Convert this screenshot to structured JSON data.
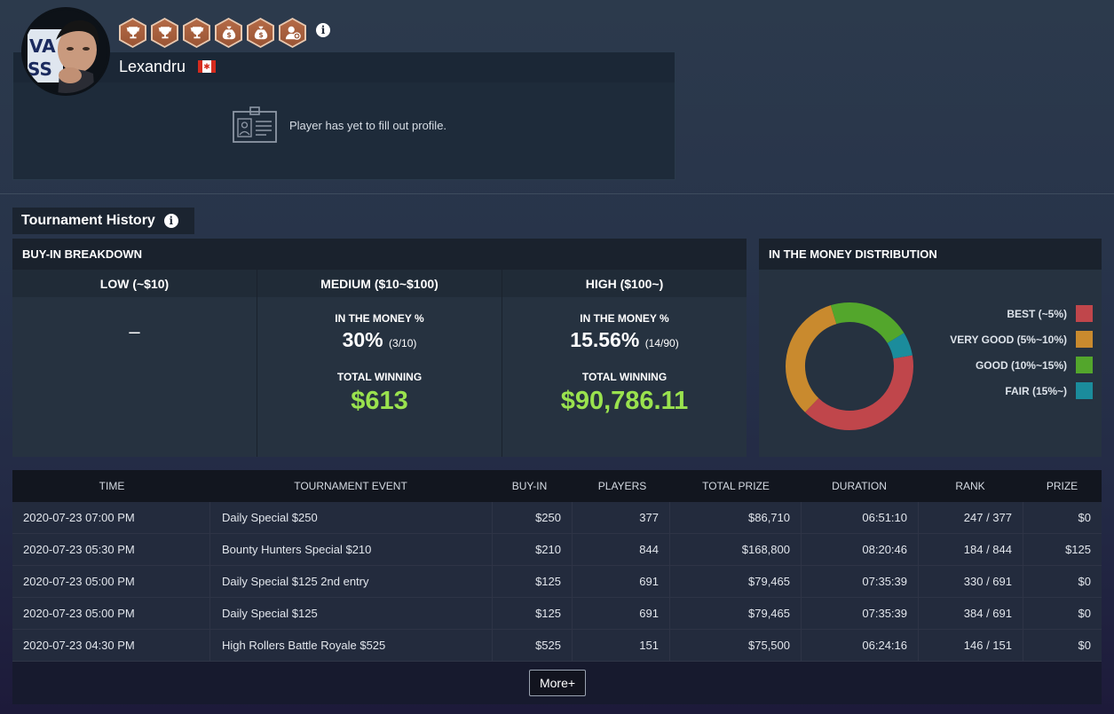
{
  "profile": {
    "name": "Lexandru",
    "country_flag": "canada-flag",
    "empty_message": "Player has yet to fill out profile.",
    "badges": [
      {
        "icon": "trophy-icon"
      },
      {
        "icon": "trophy-icon"
      },
      {
        "icon": "trophy-icon"
      },
      {
        "icon": "money-bag-icon"
      },
      {
        "icon": "money-bag-icon"
      },
      {
        "icon": "add-user-icon"
      }
    ]
  },
  "history": {
    "tab_label": "Tournament History"
  },
  "buyin": {
    "title": "BUY-IN BREAKDOWN",
    "itm_label": "IN THE MONEY %",
    "tw_label": "TOTAL WINNING",
    "low": {
      "label": "LOW (~$10)",
      "empty": "–"
    },
    "medium": {
      "label": "MEDIUM ($10~$100)",
      "itm": "30%",
      "itm_detail": "(3/10)",
      "total": "$613"
    },
    "high": {
      "label": "HIGH ($100~)",
      "itm": "15.56%",
      "itm_detail": "(14/90)",
      "total": "$90,786.11"
    }
  },
  "distribution": {
    "title": "IN THE MONEY DISTRIBUTION",
    "legend": [
      {
        "label": "BEST (~5%)",
        "color": "#c0464b"
      },
      {
        "label": "VERY GOOD (5%~10%)",
        "color": "#c98a2e"
      },
      {
        "label": "GOOD (10%~15%)",
        "color": "#53a62c"
      },
      {
        "label": "FAIR (15%~)",
        "color": "#1b8c9c"
      }
    ]
  },
  "chart_data": {
    "type": "pie",
    "categories": [
      "BEST (~5%)",
      "VERY GOOD (5%~10%)",
      "GOOD (10%~15%)",
      "FAIR (15%~)"
    ],
    "values": [
      40,
      33,
      21,
      6
    ]
  },
  "table": {
    "columns": [
      "TIME",
      "TOURNAMENT EVENT",
      "BUY-IN",
      "PLAYERS",
      "TOTAL PRIZE",
      "DURATION",
      "RANK",
      "PRIZE"
    ],
    "rows": [
      {
        "time": "2020-07-23 07:00 PM",
        "event": "Daily Special $250",
        "buyin": "$250",
        "players": "377",
        "total_prize": "$86,710",
        "duration": "06:51:10",
        "rank": "247 / 377",
        "prize": "$0"
      },
      {
        "time": "2020-07-23 05:30 PM",
        "event": "Bounty Hunters Special $210",
        "buyin": "$210",
        "players": "844",
        "total_prize": "$168,800",
        "duration": "08:20:46",
        "rank": "184 / 844",
        "prize": "$125"
      },
      {
        "time": "2020-07-23 05:00 PM",
        "event": "Daily Special $125 2nd entry",
        "buyin": "$125",
        "players": "691",
        "total_prize": "$79,465",
        "duration": "07:35:39",
        "rank": "330 / 691",
        "prize": "$0"
      },
      {
        "time": "2020-07-23 05:00 PM",
        "event": "Daily Special $125",
        "buyin": "$125",
        "players": "691",
        "total_prize": "$79,465",
        "duration": "07:35:39",
        "rank": "384 / 691",
        "prize": "$0"
      },
      {
        "time": "2020-07-23 04:30 PM",
        "event": "High Rollers Battle Royale $525",
        "buyin": "$525",
        "players": "151",
        "total_prize": "$75,500",
        "duration": "06:24:16",
        "rank": "146 / 151",
        "prize": "$0"
      }
    ],
    "more_label": "More+"
  }
}
